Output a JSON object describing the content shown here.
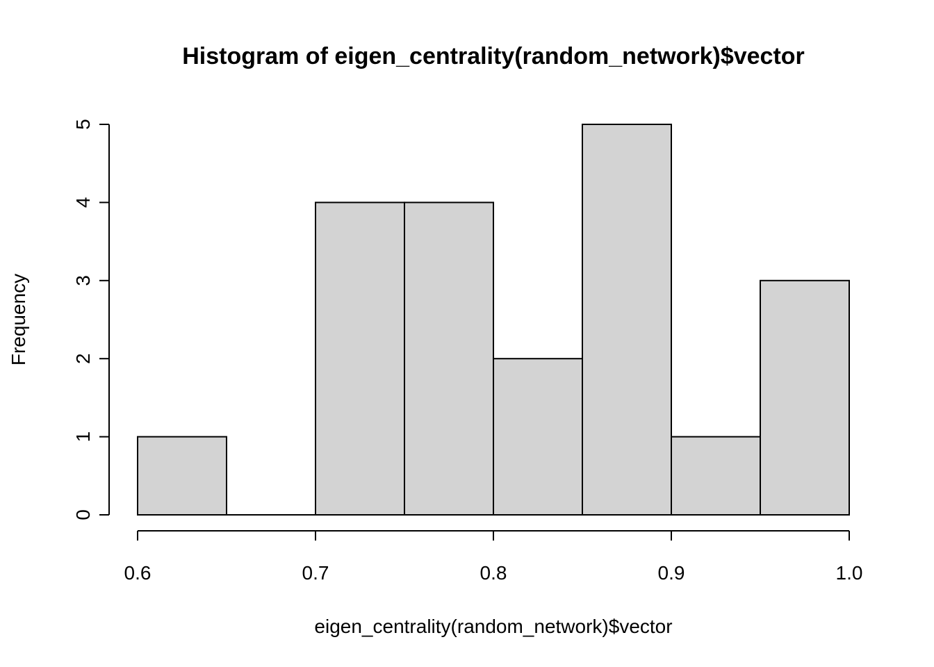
{
  "chart_data": {
    "type": "bar",
    "subtype": "histogram",
    "title": "Histogram of eigen_centrality(random_network)$vector",
    "xlabel": "eigen_centrality(random_network)$vector",
    "ylabel": "Frequency",
    "bins": [
      {
        "start": 0.6,
        "end": 0.65,
        "count": 1
      },
      {
        "start": 0.65,
        "end": 0.7,
        "count": 0
      },
      {
        "start": 0.7,
        "end": 0.75,
        "count": 4
      },
      {
        "start": 0.75,
        "end": 0.8,
        "count": 4
      },
      {
        "start": 0.8,
        "end": 0.85,
        "count": 2
      },
      {
        "start": 0.85,
        "end": 0.9,
        "count": 5
      },
      {
        "start": 0.9,
        "end": 0.95,
        "count": 1
      },
      {
        "start": 0.95,
        "end": 1.0,
        "count": 3
      }
    ],
    "xlim": [
      0.6,
      1.0
    ],
    "ylim": [
      0,
      5
    ],
    "x_ticks": [
      "0.6",
      "0.7",
      "0.8",
      "0.9",
      "1.0"
    ],
    "x_tick_values": [
      0.6,
      0.7,
      0.8,
      0.9,
      1.0
    ],
    "y_ticks": [
      "0",
      "1",
      "2",
      "3",
      "4",
      "5"
    ],
    "y_tick_values": [
      0,
      1,
      2,
      3,
      4,
      5
    ],
    "grid": false,
    "legend": "none",
    "bar_color": "#d3d3d3",
    "edge_color": "#000000"
  }
}
